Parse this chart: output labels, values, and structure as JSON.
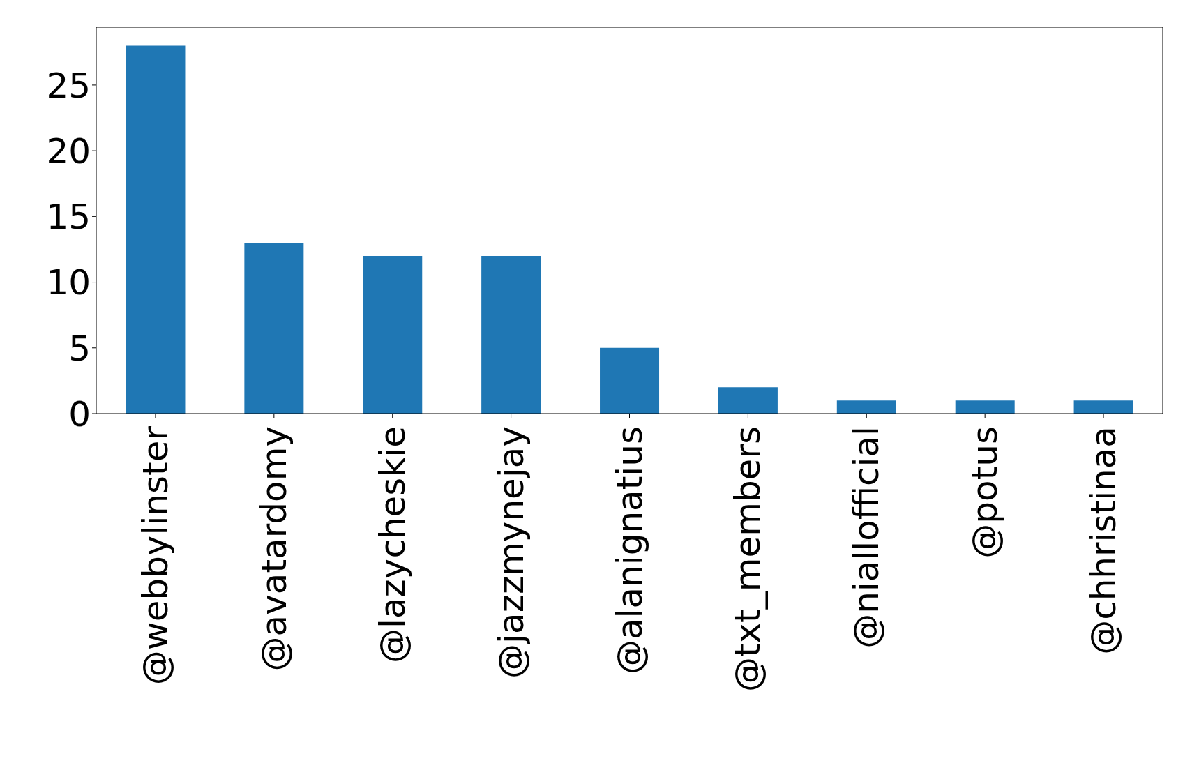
{
  "chart_data": {
    "type": "bar",
    "categories": [
      "@webbylinster",
      "@avatardomy",
      "@lazycheskie",
      "@jazzmynejay",
      "@alanignatius",
      "@txt_members",
      "@niallofficial",
      "@potus",
      "@chhristinaa"
    ],
    "values": [
      28,
      13,
      12,
      12,
      5,
      2,
      1,
      1,
      1
    ],
    "color": "#1f77b4",
    "ylim": [
      0,
      29.4
    ],
    "yticks": [
      0,
      5,
      10,
      15,
      20,
      25
    ],
    "grid": false,
    "legend": false
  }
}
